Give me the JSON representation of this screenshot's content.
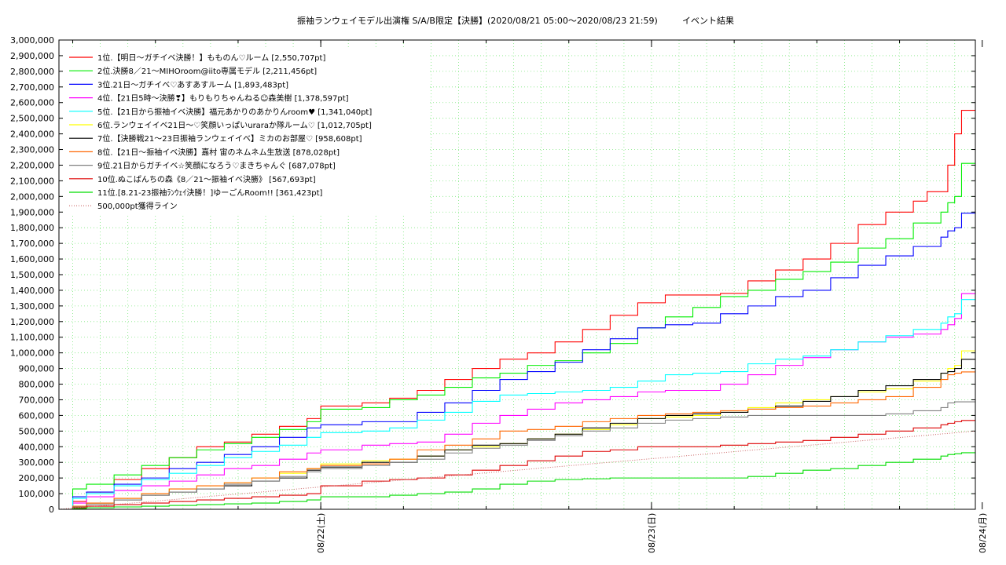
{
  "chart_data": {
    "type": "line",
    "title": "振袖ランウェイモデル出演権 S/A/B限定【決勝】(2020/08/21 05:00～2020/08/23 21:59)",
    "subtitle": "イベント結果",
    "xlabel": "",
    "ylabel": "",
    "x_unit": "hours since 2020/08/21 05:00",
    "xlim": [
      0,
      66.5
    ],
    "ylim": [
      0,
      3000000
    ],
    "y_ticks": [
      0,
      100000,
      200000,
      300000,
      400000,
      500000,
      600000,
      700000,
      800000,
      900000,
      1000000,
      1100000,
      1200000,
      1300000,
      1400000,
      1500000,
      1600000,
      1700000,
      1800000,
      1900000,
      2000000,
      2100000,
      2200000,
      2300000,
      2400000,
      2500000,
      2600000,
      2700000,
      2800000,
      2900000,
      3000000
    ],
    "y_tick_labels": [
      "0",
      "100,000",
      "200,000",
      "300,000",
      "400,000",
      "500,000",
      "600,000",
      "700,000",
      "800,000",
      "900,000",
      "1,000,000",
      "1,100,000",
      "1,200,000",
      "1,300,000",
      "1,400,000",
      "1,500,000",
      "1,600,000",
      "1,700,000",
      "1,800,000",
      "1,900,000",
      "2,000,000",
      "2,100,000",
      "2,200,000",
      "2,300,000",
      "2,400,000",
      "2,500,000",
      "2,600,000",
      "2,700,000",
      "2,800,000",
      "2,900,000",
      "3,000,000"
    ],
    "x_ticks": [
      19,
      43,
      67
    ],
    "x_tick_labels": [
      "08/22(土)",
      "08/23(日)",
      "08/24(月)"
    ],
    "grid": true,
    "legend_position": "top-left",
    "series": [
      {
        "name": "1位.【明日～ガチイベ決勝！】もものん♡ルーム [2,550,707pt]",
        "color": "#ff0000",
        "x": [
          0,
          1,
          2,
          4,
          6,
          8,
          10,
          12,
          14,
          16,
          18,
          19,
          22,
          24,
          26,
          28,
          30,
          32,
          34,
          36,
          38,
          40,
          42,
          44,
          46,
          48,
          50,
          52,
          54,
          56,
          58,
          60,
          62,
          63,
          64.5,
          65,
          65.5,
          66.5
        ],
        "y": [
          0,
          50000,
          110000,
          190000,
          260000,
          330000,
          400000,
          430000,
          480000,
          530000,
          580000,
          660000,
          680000,
          710000,
          760000,
          830000,
          900000,
          960000,
          1000000,
          1070000,
          1150000,
          1240000,
          1320000,
          1370000,
          1370000,
          1380000,
          1460000,
          1530000,
          1600000,
          1700000,
          1820000,
          1900000,
          1970000,
          2030000,
          2200000,
          2400000,
          2550707,
          2550707
        ]
      },
      {
        "name": "2位.決勝8／21～MIHOroom@iito専属モデル [2,211,456pt]",
        "color": "#00ee00",
        "x": [
          0,
          1,
          2,
          4,
          6,
          8,
          10,
          12,
          14,
          16,
          18,
          19,
          22,
          24,
          26,
          28,
          30,
          32,
          34,
          36,
          38,
          40,
          42,
          44,
          46,
          48,
          50,
          52,
          54,
          56,
          58,
          60,
          62,
          64,
          64.5,
          65,
          65.5,
          66.5
        ],
        "y": [
          0,
          130000,
          160000,
          220000,
          280000,
          330000,
          380000,
          420000,
          460000,
          510000,
          560000,
          640000,
          650000,
          700000,
          730000,
          780000,
          840000,
          870000,
          920000,
          950000,
          1000000,
          1060000,
          1160000,
          1230000,
          1290000,
          1360000,
          1400000,
          1470000,
          1520000,
          1580000,
          1670000,
          1730000,
          1830000,
          1900000,
          1960000,
          2000000,
          2211456,
          2211456
        ]
      },
      {
        "name": "3位.21日～ガチイベ♡あすあすルーム [1,893,483pt]",
        "color": "#0000ff",
        "x": [
          0,
          1,
          2,
          4,
          6,
          8,
          10,
          12,
          14,
          16,
          18,
          19,
          22,
          24,
          26,
          28,
          30,
          32,
          34,
          36,
          38,
          40,
          42,
          44,
          46,
          48,
          50,
          52,
          54,
          56,
          58,
          60,
          62,
          64,
          64.5,
          65,
          65.5,
          66.5
        ],
        "y": [
          0,
          80000,
          110000,
          160000,
          200000,
          260000,
          300000,
          350000,
          400000,
          460000,
          520000,
          540000,
          560000,
          560000,
          620000,
          680000,
          760000,
          830000,
          880000,
          940000,
          1020000,
          1090000,
          1160000,
          1180000,
          1190000,
          1250000,
          1300000,
          1360000,
          1400000,
          1480000,
          1560000,
          1620000,
          1680000,
          1740000,
          1780000,
          1800000,
          1893483,
          1893483
        ]
      },
      {
        "name": "4位.【21日5時～決勝❣】もりもりちゃんねる☺森美樹 [1,378,597pt]",
        "color": "#ff00ff",
        "x": [
          0,
          1,
          2,
          4,
          6,
          8,
          10,
          12,
          14,
          16,
          18,
          19,
          22,
          24,
          26,
          28,
          30,
          32,
          34,
          36,
          38,
          40,
          42,
          44,
          46,
          48,
          50,
          52,
          54,
          56,
          58,
          60,
          62,
          64,
          64.5,
          65,
          65.5,
          66.5
        ],
        "y": [
          0,
          40000,
          80000,
          120000,
          150000,
          180000,
          220000,
          260000,
          280000,
          320000,
          360000,
          380000,
          410000,
          420000,
          430000,
          480000,
          550000,
          600000,
          640000,
          680000,
          700000,
          720000,
          750000,
          760000,
          760000,
          800000,
          860000,
          920000,
          970000,
          1020000,
          1070000,
          1100000,
          1120000,
          1150000,
          1180000,
          1220000,
          1378597,
          1378597
        ]
      },
      {
        "name": "5位.【21日から振袖イベ決勝】福元あかりのあかりんroom♥ [1,341,040pt]",
        "color": "#00ffff",
        "x": [
          0,
          1,
          2,
          4,
          6,
          8,
          10,
          12,
          14,
          16,
          18,
          19,
          22,
          24,
          26,
          28,
          30,
          32,
          34,
          36,
          38,
          40,
          42,
          44,
          46,
          48,
          50,
          52,
          54,
          56,
          58,
          60,
          62,
          64,
          64.5,
          65,
          65.5,
          66.5
        ],
        "y": [
          0,
          70000,
          100000,
          150000,
          190000,
          230000,
          280000,
          330000,
          370000,
          410000,
          460000,
          490000,
          500000,
          520000,
          570000,
          620000,
          690000,
          730000,
          740000,
          750000,
          760000,
          780000,
          820000,
          860000,
          870000,
          880000,
          930000,
          960000,
          980000,
          1020000,
          1070000,
          1110000,
          1150000,
          1190000,
          1230000,
          1250000,
          1341040,
          1341040
        ]
      },
      {
        "name": "6位.ランウェイイベ21日～♡笑顔いっぱいuraraか隊ルーム♡ [1,012,705pt]",
        "color": "#ffff00",
        "x": [
          0,
          1,
          2,
          4,
          6,
          8,
          10,
          12,
          14,
          16,
          18,
          19,
          22,
          24,
          26,
          28,
          30,
          32,
          34,
          36,
          38,
          40,
          42,
          44,
          46,
          48,
          50,
          52,
          54,
          56,
          58,
          60,
          62,
          64,
          64.5,
          65,
          65.5,
          66.5
        ],
        "y": [
          0,
          20000,
          40000,
          70000,
          100000,
          130000,
          150000,
          170000,
          200000,
          230000,
          260000,
          290000,
          310000,
          320000,
          340000,
          380000,
          400000,
          420000,
          450000,
          480000,
          510000,
          540000,
          580000,
          590000,
          600000,
          620000,
          650000,
          680000,
          700000,
          720000,
          750000,
          770000,
          820000,
          870000,
          900000,
          920000,
          1012705,
          1012705
        ]
      },
      {
        "name": "7位.【決勝戦21～23日振袖ランウェイイベ】ミカのお部屋♡ [958,608pt]",
        "color": "#000000",
        "x": [
          0,
          1,
          2,
          4,
          6,
          8,
          10,
          12,
          14,
          16,
          18,
          19,
          22,
          24,
          26,
          28,
          30,
          32,
          34,
          36,
          38,
          40,
          42,
          44,
          46,
          48,
          50,
          52,
          54,
          56,
          58,
          60,
          62,
          64,
          64.5,
          65,
          65.5,
          66.5
        ],
        "y": [
          0,
          20000,
          40000,
          60000,
          90000,
          110000,
          130000,
          150000,
          180000,
          200000,
          250000,
          270000,
          300000,
          300000,
          340000,
          380000,
          410000,
          420000,
          450000,
          480000,
          520000,
          550000,
          580000,
          600000,
          610000,
          620000,
          640000,
          660000,
          690000,
          720000,
          760000,
          790000,
          830000,
          870000,
          880000,
          900000,
          958608,
          958608
        ]
      },
      {
        "name": "8位.【21日～振袖イベ決勝】嘉村 宙のネムネム生放送 [878,028pt]",
        "color": "#ff6600",
        "x": [
          0,
          1,
          2,
          4,
          6,
          8,
          10,
          12,
          14,
          16,
          18,
          19,
          22,
          24,
          26,
          28,
          30,
          32,
          34,
          36,
          38,
          40,
          42,
          44,
          46,
          48,
          50,
          52,
          54,
          56,
          58,
          60,
          62,
          64,
          64.5,
          65,
          65.5,
          66.5
        ],
        "y": [
          0,
          20000,
          40000,
          70000,
          100000,
          130000,
          150000,
          170000,
          200000,
          240000,
          260000,
          280000,
          290000,
          320000,
          380000,
          410000,
          450000,
          500000,
          510000,
          530000,
          560000,
          580000,
          600000,
          610000,
          620000,
          630000,
          640000,
          650000,
          660000,
          680000,
          700000,
          720000,
          780000,
          830000,
          860000,
          870000,
          878028,
          878028
        ]
      },
      {
        "name": "9位.21日からガチイベ☆笑顔になろう♡まきちゃんぐ [687,078pt]",
        "color": "#808080",
        "x": [
          0,
          1,
          2,
          4,
          6,
          8,
          10,
          12,
          14,
          16,
          18,
          19,
          22,
          24,
          26,
          28,
          30,
          32,
          34,
          36,
          38,
          40,
          42,
          44,
          46,
          48,
          50,
          52,
          54,
          56,
          58,
          60,
          62,
          64,
          64.5,
          65,
          65.5,
          66.5
        ],
        "y": [
          0,
          15000,
          30000,
          60000,
          90000,
          110000,
          130000,
          160000,
          180000,
          210000,
          240000,
          260000,
          280000,
          300000,
          320000,
          360000,
          390000,
          410000,
          440000,
          470000,
          500000,
          520000,
          550000,
          570000,
          580000,
          590000,
          600000,
          600000,
          600000,
          600000,
          600000,
          610000,
          630000,
          650000,
          680000,
          687078,
          687078,
          687078
        ]
      },
      {
        "name": "10位.ぬこぱんちの森《8／21～振袖イベ決勝》 [567,693pt]",
        "color": "#dd0000",
        "x": [
          0,
          1,
          2,
          4,
          6,
          8,
          10,
          12,
          14,
          16,
          18,
          19,
          22,
          24,
          26,
          28,
          30,
          32,
          34,
          36,
          38,
          40,
          42,
          44,
          46,
          48,
          50,
          52,
          54,
          56,
          58,
          60,
          62,
          64,
          64.5,
          65,
          65.5,
          66.5
        ],
        "y": [
          0,
          10000,
          20000,
          30000,
          40000,
          50000,
          60000,
          70000,
          80000,
          90000,
          100000,
          150000,
          180000,
          190000,
          200000,
          220000,
          250000,
          280000,
          310000,
          340000,
          370000,
          380000,
          400000,
          400000,
          400000,
          410000,
          420000,
          430000,
          440000,
          460000,
          480000,
          500000,
          520000,
          540000,
          550000,
          560000,
          567693,
          567693
        ]
      },
      {
        "name": "11位.[8.21-23振袖ﾗﾝｳｪｲ決勝！]ゆーごんRoom!! [361,423pt]",
        "color": "#00dd00",
        "x": [
          0,
          1,
          2,
          4,
          6,
          8,
          10,
          12,
          14,
          16,
          18,
          19,
          22,
          24,
          26,
          28,
          30,
          32,
          34,
          36,
          38,
          40,
          42,
          44,
          46,
          48,
          50,
          52,
          54,
          56,
          58,
          60,
          62,
          64,
          64.5,
          65,
          65.5,
          66.5
        ],
        "y": [
          0,
          5000,
          10000,
          15000,
          20000,
          25000,
          30000,
          35000,
          40000,
          50000,
          60000,
          80000,
          80000,
          90000,
          100000,
          110000,
          130000,
          160000,
          180000,
          190000,
          195000,
          200000,
          200000,
          200000,
          200000,
          200000,
          210000,
          230000,
          250000,
          260000,
          280000,
          300000,
          320000,
          340000,
          350000,
          355000,
          361423,
          361423
        ]
      },
      {
        "name": "500,000pt獲得ライン",
        "color": "#cc6666",
        "dashed": true,
        "x": [
          0,
          66.5
        ],
        "y": [
          0,
          500000
        ]
      }
    ]
  }
}
